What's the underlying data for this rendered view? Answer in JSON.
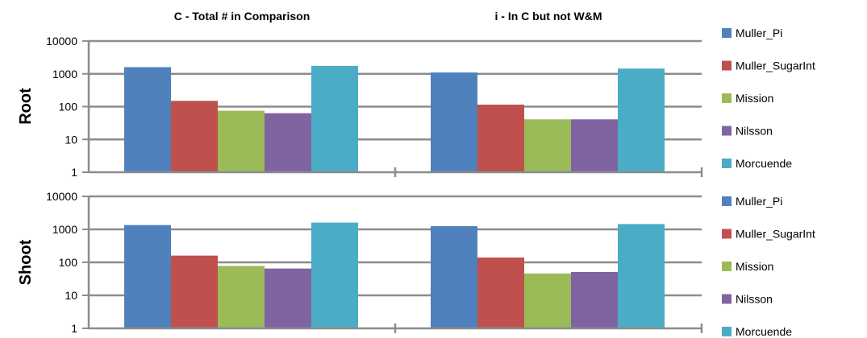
{
  "chart_data": {
    "type": "bar",
    "scale": "log",
    "ylim": [
      1,
      10000
    ],
    "y_ticks": [
      "1",
      "10",
      "100",
      "1000",
      "10000"
    ],
    "y_tick_values": [
      1,
      10,
      100,
      1000,
      10000
    ],
    "grid": true,
    "legend_position": "right",
    "column_titles": [
      "C - Total # in Comparison",
      "i - In C but not W&M"
    ],
    "series_colors": {
      "Muller_Pi": "#4f81bd",
      "Muller_SugarInt": "#c0504d",
      "Mission": "#9bbb59",
      "Nilsson": "#8064a2",
      "Morcuende": "#4bacc6"
    },
    "panels": [
      {
        "row_label": "Root",
        "legend": [
          "Muller_Pi",
          "Muller_SugarInt",
          "Mission",
          "Nilsson",
          "Morcuende"
        ],
        "groups": [
          {
            "category": "C - Total # in Comparison",
            "series": [
              {
                "name": "Muller_Pi",
                "value": 1600
              },
              {
                "name": "Muller_SugarInt",
                "value": 150
              },
              {
                "name": "Mission",
                "value": 75
              },
              {
                "name": "Nilsson",
                "value": 63
              },
              {
                "name": "Morcuende",
                "value": 1750
              }
            ]
          },
          {
            "category": "i - In C but not W&M",
            "series": [
              {
                "name": "Muller_Pi",
                "value": 1100
              },
              {
                "name": "Muller_SugarInt",
                "value": 115
              },
              {
                "name": "Mission",
                "value": 41
              },
              {
                "name": "Nilsson",
                "value": 41
              },
              {
                "name": "Morcuende",
                "value": 1450
              }
            ]
          }
        ]
      },
      {
        "row_label": "Shoot",
        "legend": [
          "Muller_Pi",
          "Muller_SugarInt",
          "Mission",
          "Nilsson",
          "Morcuende"
        ],
        "groups": [
          {
            "category": "C - Total # in Comparison",
            "series": [
              {
                "name": "Muller_Pi",
                "value": 1350
              },
              {
                "name": "Muller_SugarInt",
                "value": 160
              },
              {
                "name": "Mission",
                "value": 78
              },
              {
                "name": "Nilsson",
                "value": 65
              },
              {
                "name": "Morcuende",
                "value": 1600
              }
            ]
          },
          {
            "category": "i - In C but not W&M",
            "series": [
              {
                "name": "Muller_Pi",
                "value": 1250
              },
              {
                "name": "Muller_SugarInt",
                "value": 140
              },
              {
                "name": "Mission",
                "value": 46
              },
              {
                "name": "Nilsson",
                "value": 51
              },
              {
                "name": "Morcuende",
                "value": 1450
              }
            ]
          }
        ]
      }
    ]
  }
}
